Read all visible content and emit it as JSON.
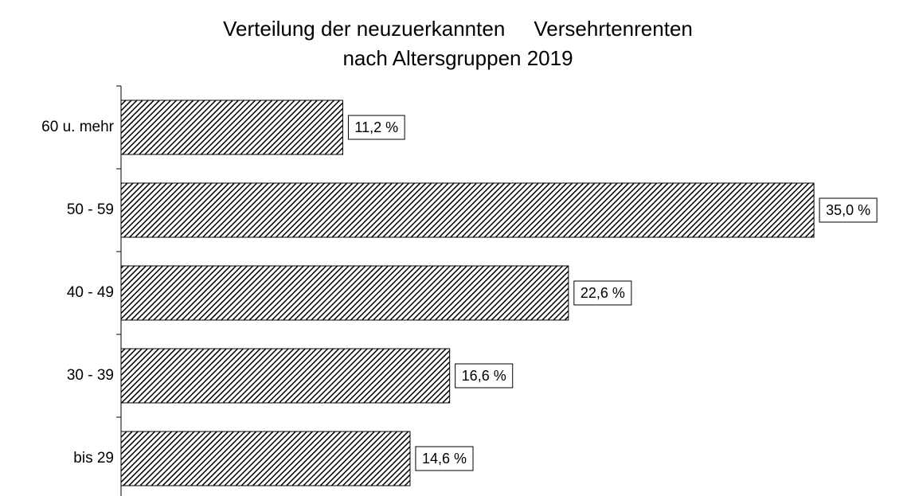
{
  "chart_data": {
    "type": "bar",
    "orientation": "horizontal",
    "title": [
      "Verteilung der neuzuerkannten     Versehrtenrenten",
      "nach Altersgruppen 2019"
    ],
    "categories": [
      "60 u. mehr",
      "50 - 59",
      "40 - 49",
      "30 - 39",
      "bis 29"
    ],
    "values": [
      11.2,
      35.0,
      22.6,
      16.6,
      14.6
    ],
    "value_labels": [
      "11,2 %",
      "35,0 %",
      "22,6 %",
      "16,6 %",
      "14,6 %"
    ],
    "color": "#000000"
  }
}
